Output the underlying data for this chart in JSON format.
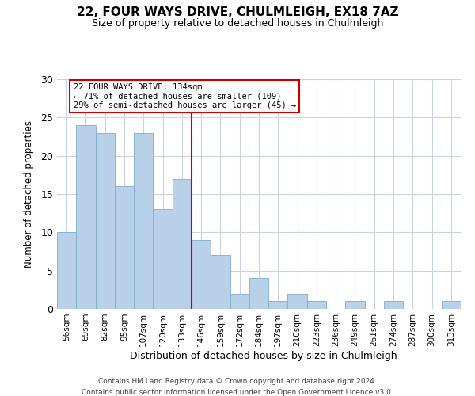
{
  "title_line1": "22, FOUR WAYS DRIVE, CHULMLEIGH, EX18 7AZ",
  "title_line2": "Size of property relative to detached houses in Chulmleigh",
  "xlabel": "Distribution of detached houses by size in Chulmleigh",
  "ylabel": "Number of detached properties",
  "categories": [
    "56sqm",
    "69sqm",
    "82sqm",
    "95sqm",
    "107sqm",
    "120sqm",
    "133sqm",
    "146sqm",
    "159sqm",
    "172sqm",
    "184sqm",
    "197sqm",
    "210sqm",
    "223sqm",
    "236sqm",
    "249sqm",
    "261sqm",
    "274sqm",
    "287sqm",
    "300sqm",
    "313sqm"
  ],
  "values": [
    10,
    24,
    23,
    16,
    23,
    13,
    17,
    9,
    7,
    2,
    4,
    1,
    2,
    1,
    0,
    1,
    0,
    1,
    0,
    0,
    1
  ],
  "bar_color": "#b8d0e8",
  "bar_edge_color": "#7aaed0",
  "vline_x": 6.5,
  "vline_color": "#cc0000",
  "ylim": [
    0,
    30
  ],
  "annotation_title": "22 FOUR WAYS DRIVE: 134sqm",
  "annotation_line2": "← 71% of detached houses are smaller (109)",
  "annotation_line3": "29% of semi-detached houses are larger (45) →",
  "annotation_box_color": "#cc0000",
  "footer_line1": "Contains HM Land Registry data © Crown copyright and database right 2024.",
  "footer_line2": "Contains public sector information licensed under the Open Government Licence v3.0.",
  "bg_color": "#ffffff",
  "grid_color": "#c8d4e4"
}
